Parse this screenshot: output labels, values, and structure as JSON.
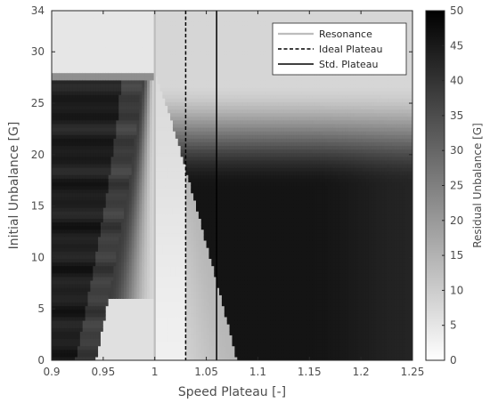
{
  "chart_data": {
    "type": "heatmap",
    "xlabel": "Speed Plateau [-]",
    "ylabel": "Initial Unbalance [G]",
    "xlim": [
      0.9,
      1.25
    ],
    "ylim": [
      0,
      34
    ],
    "xticks": [
      "0.9",
      "0.95",
      "1",
      "1.05",
      "1.1",
      "1.15",
      "1.2",
      "1.25"
    ],
    "yticks": [
      "0",
      "5",
      "10",
      "15",
      "20",
      "25",
      "30",
      "34"
    ],
    "colorbar": {
      "label": "Residual Unbalance [G]",
      "range": [
        0,
        50
      ],
      "ticks": [
        "0",
        "5",
        "10",
        "15",
        "20",
        "25",
        "30",
        "35",
        "40",
        "45",
        "50"
      ],
      "colormap": "gray-reversed (white = 0, black = 50)"
    },
    "vertical_lines": [
      {
        "name": "Resonance",
        "x": 1.0,
        "style": "solid",
        "color": "#bdbdbd"
      },
      {
        "name": "Ideal Plateau",
        "x": 1.03,
        "style": "dashed",
        "color": "#000000"
      },
      {
        "name": "Std. Plateau",
        "x": 1.06,
        "style": "solid",
        "color": "#000000"
      }
    ],
    "legend": {
      "position": "top-right",
      "entries": [
        "Resonance",
        "Ideal Plateau",
        "Std. Plateau"
      ]
    },
    "approx_field": {
      "description": "Residual unbalance vs speed plateau and initial unbalance; dark region for speeds below ~0.98 up to 28 G, bright curved band between ~1.0 and ~1.08, dark horizontal region above ~1.08 for initial unbalance below ~20 G, fading to light above ~25 G; area above 28 G for speeds below ~1.0 is light gray.",
      "data_upper_limit_low_speed": 28,
      "white_wedge_peak": {
        "x": 1.0,
        "y": 28
      },
      "white_wedge_base": [
        1.0,
        1.08
      ]
    }
  }
}
